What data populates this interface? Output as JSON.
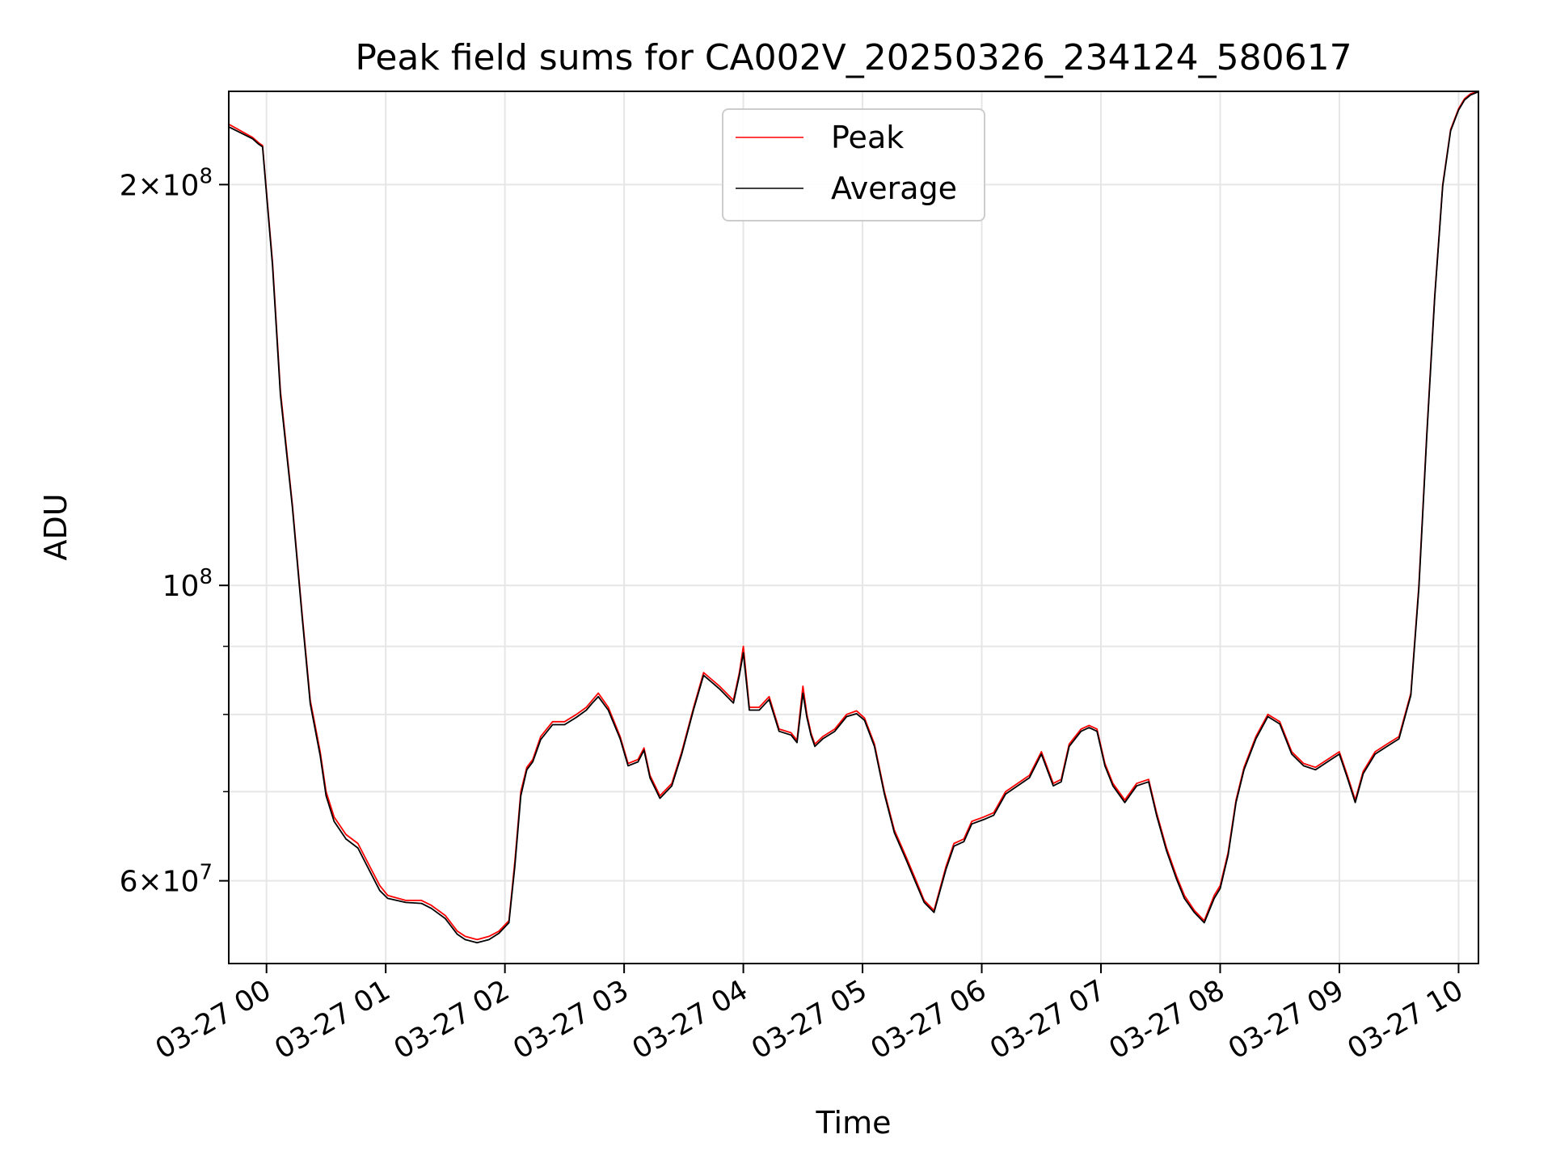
{
  "chart_data": {
    "type": "line",
    "title": "Peak field sums for CA002V_20250326_234124_580617",
    "xlabel": "Time",
    "ylabel": "ADU",
    "yscale": "log",
    "grid": true,
    "legend_position": "upper center",
    "x_ticks": [
      "03-27 00",
      "03-27 01",
      "03-27 02",
      "03-27 03",
      "03-27 04",
      "03-27 05",
      "03-27 06",
      "03-27 07",
      "03-27 08",
      "03-27 09",
      "03-27 10"
    ],
    "y_major_ticks": [
      {
        "value": 200000000,
        "mantissa": "2",
        "exponent": "8"
      },
      {
        "value": 100000000,
        "mantissa": "",
        "exponent": "8"
      },
      {
        "value": 60000000,
        "mantissa": "6",
        "exponent": "7"
      }
    ],
    "y_minor_ticks": [
      70000000,
      80000000,
      90000000
    ],
    "xlim": [
      "2025-03-26 23:41",
      "2025-03-27 10:10"
    ],
    "ylim": [
      52000000,
      235000000
    ],
    "series": [
      {
        "name": "Peak",
        "color": "#ff0000",
        "x": [
          "23:41",
          "23:53",
          "23:56",
          "23:58",
          "00:03",
          "00:07",
          "00:13",
          "00:18",
          "00:22",
          "00:27",
          "00:30",
          "00:34",
          "00:40",
          "00:46",
          "00:52",
          "00:57",
          "01:01",
          "01:10",
          "01:18",
          "01:23",
          "01:30",
          "01:36",
          "01:40",
          "01:46",
          "01:52",
          "01:57",
          "02:02",
          "02:05",
          "02:08",
          "02:11",
          "02:14",
          "02:18",
          "02:24",
          "02:30",
          "02:36",
          "02:41",
          "02:44",
          "02:47",
          "02:52",
          "02:58",
          "03:02",
          "03:07",
          "03:10",
          "03:13",
          "03:18",
          "03:24",
          "03:29",
          "03:35",
          "03:40",
          "03:44",
          "03:48",
          "03:55",
          "03:58",
          "04:00",
          "04:03",
          "04:08",
          "04:13",
          "04:18",
          "04:24",
          "04:27",
          "04:30",
          "04:32",
          "04:34",
          "04:36",
          "04:40",
          "04:46",
          "04:52",
          "04:57",
          "05:01",
          "05:06",
          "05:11",
          "05:16",
          "05:22",
          "05:27",
          "05:31",
          "05:36",
          "05:42",
          "05:46",
          "05:51",
          "05:55",
          "06:01",
          "06:06",
          "06:12",
          "06:18",
          "06:24",
          "06:30",
          "06:36",
          "06:40",
          "06:44",
          "06:50",
          "06:54",
          "06:58",
          "07:02",
          "07:06",
          "07:12",
          "07:18",
          "07:24",
          "07:28",
          "07:33",
          "07:38",
          "07:42",
          "07:47",
          "07:52",
          "07:57",
          "08:00",
          "08:04",
          "08:08",
          "08:12",
          "08:18",
          "08:24",
          "08:30",
          "08:36",
          "08:42",
          "08:48",
          "08:54",
          "09:00",
          "09:04",
          "09:08",
          "09:12",
          "09:18",
          "09:24",
          "09:30",
          "09:36",
          "09:40",
          "09:44",
          "09:48",
          "09:52",
          "09:56",
          "10:00",
          "10:03",
          "10:06",
          "10:10"
        ],
        "y": [
          222000000,
          217000000,
          215000000,
          214000000,
          175000000,
          140000000,
          115000000,
          95000000,
          82000000,
          75000000,
          70000000,
          67000000,
          65000000,
          64000000,
          61500000,
          59500000,
          58500000,
          58000000,
          58000000,
          57500000,
          56500000,
          55000000,
          54500000,
          54200000,
          54500000,
          55000000,
          56000000,
          62000000,
          70000000,
          73000000,
          74000000,
          77000000,
          79000000,
          79000000,
          80000000,
          81000000,
          82000000,
          83000000,
          81000000,
          77000000,
          73500000,
          74000000,
          75500000,
          72000000,
          69500000,
          71000000,
          75000000,
          81000000,
          86000000,
          85000000,
          84000000,
          82000000,
          86000000,
          90000000,
          81000000,
          81000000,
          82500000,
          78000000,
          77500000,
          76500000,
          84000000,
          80000000,
          77500000,
          76000000,
          77000000,
          78000000,
          80000000,
          80500000,
          79500000,
          76000000,
          70000000,
          65500000,
          62500000,
          60000000,
          58000000,
          57000000,
          61500000,
          64000000,
          64500000,
          66500000,
          67000000,
          67500000,
          70000000,
          71000000,
          72000000,
          75000000,
          71000000,
          71500000,
          76000000,
          78000000,
          78500000,
          78000000,
          73500000,
          71000000,
          69000000,
          71000000,
          71500000,
          67500000,
          63500000,
          60500000,
          58500000,
          57000000,
          56000000,
          58500000,
          59500000,
          63000000,
          69000000,
          73000000,
          77000000,
          80000000,
          79000000,
          75000000,
          73500000,
          73000000,
          74000000,
          75000000,
          72000000,
          69000000,
          72500000,
          75000000,
          76000000,
          77000000,
          83000000,
          100000000,
          130000000,
          165000000,
          200000000,
          220000000,
          228000000,
          232000000,
          234000000,
          235000000
        ]
      },
      {
        "name": "Average",
        "color": "#000000",
        "x": [
          "23:41",
          "23:53",
          "23:56",
          "23:58",
          "00:03",
          "00:07",
          "00:13",
          "00:18",
          "00:22",
          "00:27",
          "00:30",
          "00:34",
          "00:40",
          "00:46",
          "00:52",
          "00:57",
          "01:01",
          "01:10",
          "01:18",
          "01:23",
          "01:30",
          "01:36",
          "01:40",
          "01:46",
          "01:52",
          "01:57",
          "02:02",
          "02:05",
          "02:08",
          "02:11",
          "02:14",
          "02:18",
          "02:24",
          "02:30",
          "02:36",
          "02:41",
          "02:44",
          "02:47",
          "02:52",
          "02:58",
          "03:02",
          "03:07",
          "03:10",
          "03:13",
          "03:18",
          "03:24",
          "03:29",
          "03:35",
          "03:40",
          "03:44",
          "03:48",
          "03:55",
          "03:58",
          "04:00",
          "04:03",
          "04:08",
          "04:13",
          "04:18",
          "04:24",
          "04:27",
          "04:30",
          "04:32",
          "04:34",
          "04:36",
          "04:40",
          "04:46",
          "04:52",
          "04:57",
          "05:01",
          "05:06",
          "05:11",
          "05:16",
          "05:22",
          "05:27",
          "05:31",
          "05:36",
          "05:42",
          "05:46",
          "05:51",
          "05:55",
          "06:01",
          "06:06",
          "06:12",
          "06:18",
          "06:24",
          "06:30",
          "06:36",
          "06:40",
          "06:44",
          "06:50",
          "06:54",
          "06:58",
          "07:02",
          "07:06",
          "07:12",
          "07:18",
          "07:24",
          "07:28",
          "07:33",
          "07:38",
          "07:42",
          "07:47",
          "07:52",
          "07:57",
          "08:00",
          "08:04",
          "08:08",
          "08:12",
          "08:18",
          "08:24",
          "08:30",
          "08:36",
          "08:42",
          "08:48",
          "08:54",
          "09:00",
          "09:04",
          "09:08",
          "09:12",
          "09:18",
          "09:24",
          "09:30",
          "09:36",
          "09:40",
          "09:44",
          "09:48",
          "09:52",
          "09:56",
          "10:00",
          "10:03",
          "10:06",
          "10:10"
        ],
        "y": [
          221000000,
          216500000,
          214500000,
          213500000,
          174000000,
          139000000,
          114500000,
          94500000,
          81500000,
          74500000,
          69500000,
          66500000,
          64500000,
          63500000,
          61000000,
          59000000,
          58200000,
          57800000,
          57700000,
          57200000,
          56200000,
          54700000,
          54200000,
          53900000,
          54200000,
          54800000,
          55800000,
          61500000,
          69500000,
          72700000,
          73700000,
          76600000,
          78600000,
          78600000,
          79600000,
          80600000,
          81600000,
          82500000,
          80600000,
          76700000,
          73200000,
          73700000,
          75200000,
          71700000,
          69200000,
          70700000,
          74700000,
          80700000,
          85600000,
          84600000,
          83600000,
          81600000,
          85600000,
          89000000,
          80600000,
          80600000,
          82100000,
          77700000,
          77200000,
          76200000,
          83000000,
          79600000,
          77200000,
          75700000,
          76700000,
          77700000,
          79700000,
          80100000,
          79200000,
          75700000,
          69700000,
          65200000,
          62200000,
          59700000,
          57800000,
          56800000,
          61200000,
          63700000,
          64200000,
          66200000,
          66700000,
          67200000,
          69700000,
          70700000,
          71700000,
          74700000,
          70700000,
          71200000,
          75700000,
          77700000,
          78200000,
          77700000,
          73200000,
          70700000,
          68700000,
          70700000,
          71200000,
          67200000,
          63200000,
          60200000,
          58200000,
          56800000,
          55800000,
          58200000,
          59200000,
          62700000,
          68700000,
          72700000,
          76700000,
          79700000,
          78700000,
          74700000,
          73200000,
          72700000,
          73700000,
          74700000,
          71700000,
          68700000,
          72200000,
          74700000,
          75700000,
          76700000,
          82700000,
          99500000,
          129500000,
          164500000,
          199500000,
          219500000,
          227500000,
          231500000,
          233500000,
          234800000
        ]
      }
    ]
  }
}
